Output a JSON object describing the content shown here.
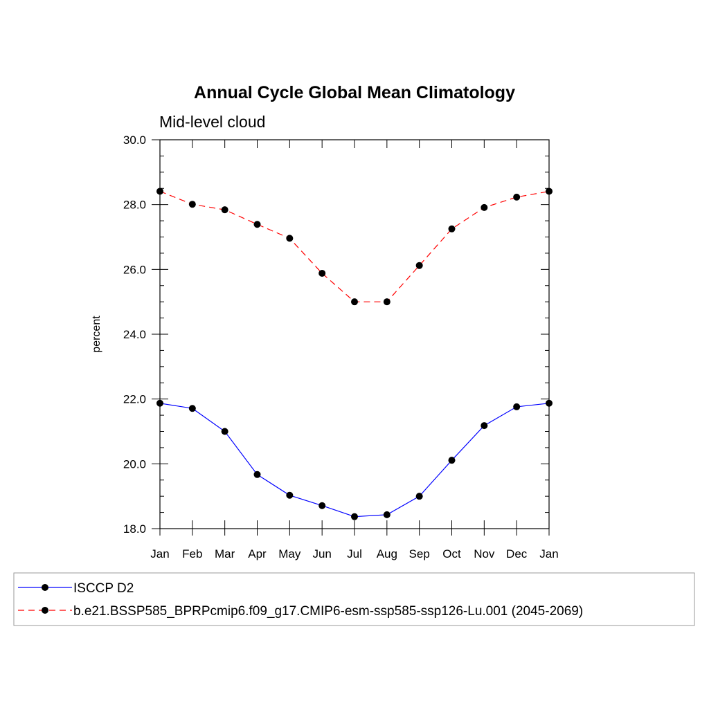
{
  "chart_data": {
    "type": "line",
    "title": "Annual Cycle Global Mean Climatology",
    "subtitle": "Mid-level cloud",
    "xlabel": "",
    "ylabel": "percent",
    "categories": [
      "Jan",
      "Feb",
      "Mar",
      "Apr",
      "May",
      "Jun",
      "Jul",
      "Aug",
      "Sep",
      "Oct",
      "Nov",
      "Dec",
      "Jan"
    ],
    "ylim": [
      18.0,
      30.0
    ],
    "yticks": [
      18.0,
      20.0,
      22.0,
      24.0,
      26.0,
      28.0,
      30.0
    ],
    "ytick_labels": [
      "18.0",
      "20.0",
      "22.0",
      "24.0",
      "26.0",
      "28.0",
      "30.0"
    ],
    "grid": false,
    "legend_position": "bottom",
    "series": [
      {
        "name": "ISCCP D2",
        "color": "#0000ff",
        "dash": "solid",
        "marker": "circle",
        "values": [
          21.87,
          21.71,
          21.0,
          19.67,
          19.03,
          18.71,
          18.37,
          18.43,
          19.0,
          20.11,
          21.18,
          21.76,
          21.87
        ]
      },
      {
        "name": "b.e21.BSSP585_BPRPcmip6.f09_g17.CMIP6-esm-ssp585-ssp126-Lu.001 (2045-2069)",
        "color": "#ff0000",
        "dash": "dashed",
        "marker": "circle",
        "values": [
          28.41,
          28.01,
          27.84,
          27.39,
          26.96,
          25.88,
          25.0,
          25.0,
          26.12,
          27.25,
          27.91,
          28.23,
          28.41
        ]
      }
    ]
  }
}
